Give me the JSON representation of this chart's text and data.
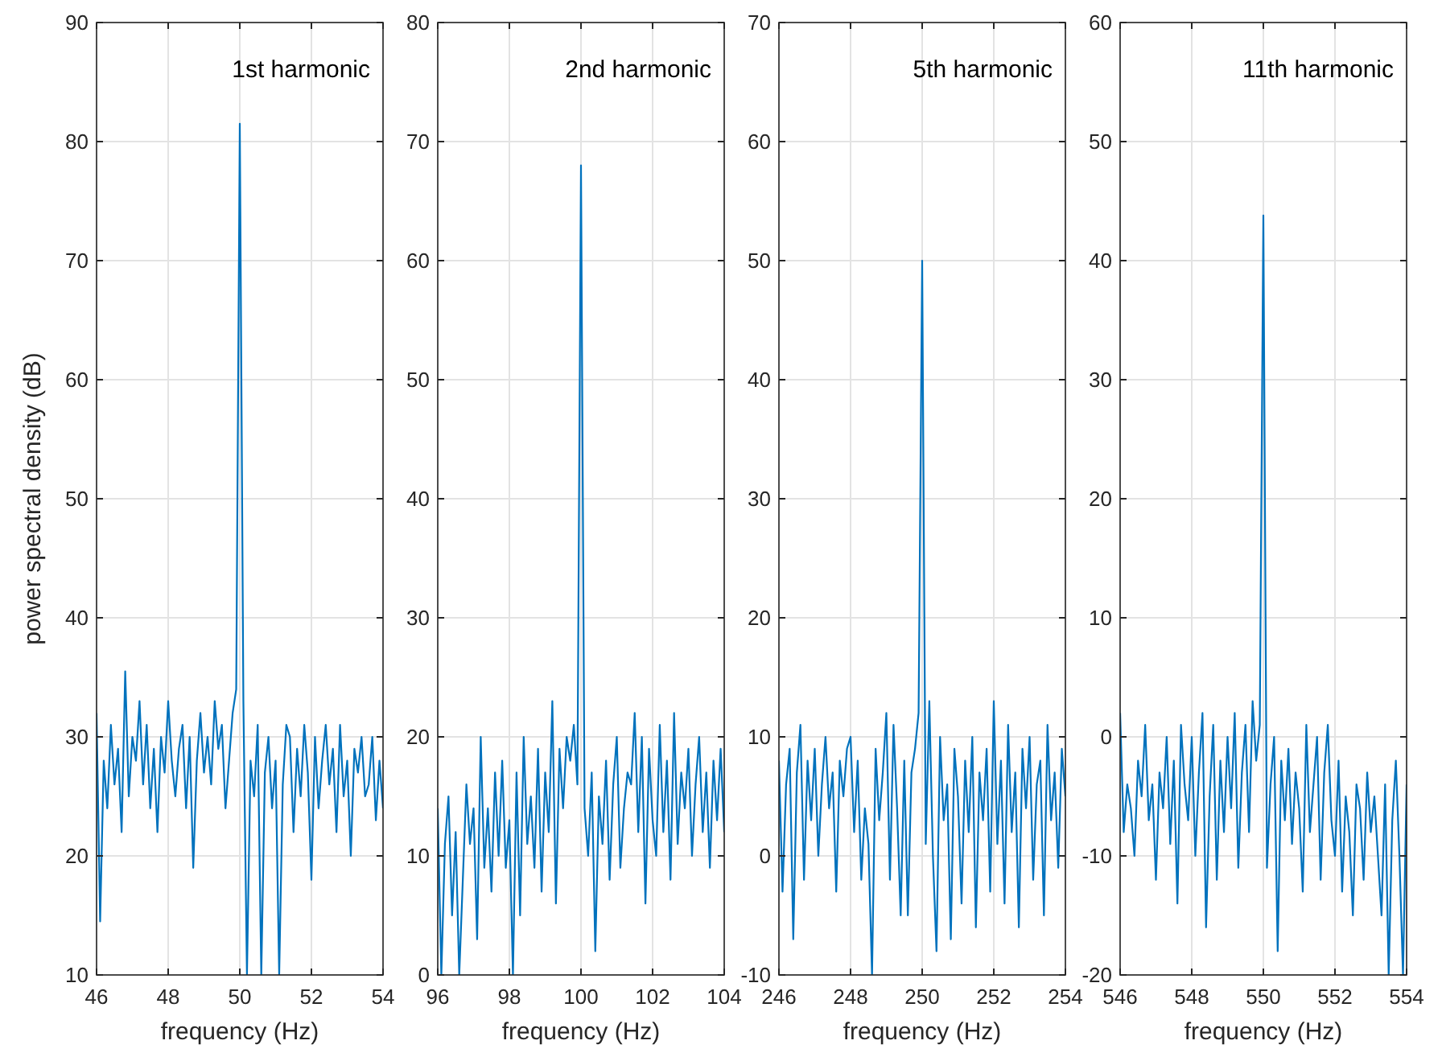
{
  "chart_data": [
    {
      "type": "line",
      "xlabel": "frequency (Hz)",
      "ylabel": "power spectral density (dB)",
      "annotations": [
        "1st harmonic"
      ],
      "xlim": [
        46,
        54
      ],
      "xticks": [
        46,
        48,
        50,
        52,
        54
      ],
      "ylim": [
        10,
        90
      ],
      "yticks": [
        10,
        20,
        30,
        40,
        50,
        60,
        70,
        80,
        90
      ],
      "grid": true,
      "series": [
        {
          "color": "#0072bd",
          "x": [
            46.0,
            46.1,
            46.2,
            46.3,
            46.4,
            46.5,
            46.6,
            46.7,
            46.8,
            46.9,
            47.0,
            47.1,
            47.2,
            47.3,
            47.4,
            47.5,
            47.6,
            47.7,
            47.8,
            47.9,
            48.0,
            48.1,
            48.2,
            48.3,
            48.4,
            48.5,
            48.6,
            48.7,
            48.8,
            48.9,
            49.0,
            49.1,
            49.2,
            49.3,
            49.4,
            49.5,
            49.6,
            49.7,
            49.8,
            49.9,
            50.0,
            50.1,
            50.2,
            50.3,
            50.4,
            50.5,
            50.6,
            50.7,
            50.8,
            50.9,
            51.0,
            51.1,
            51.2,
            51.3,
            51.4,
            51.5,
            51.6,
            51.7,
            51.8,
            51.9,
            52.0,
            52.1,
            52.2,
            52.3,
            52.4,
            52.5,
            52.6,
            52.7,
            52.8,
            52.9,
            53.0,
            53.1,
            53.2,
            53.3,
            53.4,
            53.5,
            53.6,
            53.7,
            53.8,
            53.9,
            54.0
          ],
          "values": [
            32,
            14.5,
            28,
            24,
            31,
            26,
            29,
            22,
            35.5,
            25,
            30,
            28,
            33,
            26,
            31,
            24,
            29,
            22,
            30,
            27,
            33,
            28,
            25,
            29,
            31,
            24,
            30,
            19,
            28,
            32,
            27,
            30,
            26,
            33,
            29,
            31,
            24,
            28,
            32,
            34,
            81.5,
            33,
            10,
            28,
            25,
            31,
            10,
            27,
            30,
            24,
            28,
            10,
            26,
            31,
            30,
            22,
            29,
            25,
            31,
            27,
            18,
            30,
            24,
            28,
            31,
            26,
            29,
            22,
            31,
            25,
            28,
            20,
            29,
            27,
            30,
            25,
            26,
            30,
            23,
            28,
            24
          ]
        }
      ]
    },
    {
      "type": "line",
      "xlabel": "frequency (Hz)",
      "annotations": [
        "2nd harmonic"
      ],
      "xlim": [
        96,
        104
      ],
      "xticks": [
        96,
        98,
        100,
        102,
        104
      ],
      "ylim": [
        0,
        80
      ],
      "yticks": [
        0,
        10,
        20,
        30,
        40,
        50,
        60,
        70,
        80
      ],
      "grid": true,
      "series": [
        {
          "color": "#0072bd",
          "x": [
            96.0,
            96.1,
            96.2,
            96.3,
            96.4,
            96.5,
            96.6,
            96.7,
            96.8,
            96.9,
            97.0,
            97.1,
            97.2,
            97.3,
            97.4,
            97.5,
            97.6,
            97.7,
            97.8,
            97.9,
            98.0,
            98.1,
            98.2,
            98.3,
            98.4,
            98.5,
            98.6,
            98.7,
            98.8,
            98.9,
            99.0,
            99.1,
            99.2,
            99.3,
            99.4,
            99.5,
            99.6,
            99.7,
            99.8,
            99.9,
            100.0,
            100.1,
            100.2,
            100.3,
            100.4,
            100.5,
            100.6,
            100.7,
            100.8,
            100.9,
            101.0,
            101.1,
            101.2,
            101.3,
            101.4,
            101.5,
            101.6,
            101.7,
            101.8,
            101.9,
            102.0,
            102.1,
            102.2,
            102.3,
            102.4,
            102.5,
            102.6,
            102.7,
            102.8,
            102.9,
            103.0,
            103.1,
            103.2,
            103.3,
            103.4,
            103.5,
            103.6,
            103.7,
            103.8,
            103.9,
            104.0
          ],
          "values": [
            14,
            0,
            11,
            15,
            5,
            12,
            0,
            8,
            16,
            11,
            14,
            3,
            20,
            9,
            14,
            7,
            17,
            10,
            18,
            9,
            13,
            0,
            17,
            5,
            20,
            11,
            15,
            9,
            19,
            7,
            17,
            12,
            23,
            6,
            19,
            14,
            20,
            18,
            21,
            16,
            68,
            14,
            10,
            17,
            2,
            15,
            11,
            18,
            8,
            16,
            20,
            9,
            14,
            17,
            16,
            22,
            12,
            20,
            6,
            19,
            13,
            10,
            21,
            12,
            18,
            8,
            22,
            11,
            17,
            14,
            19,
            10,
            16,
            20,
            12,
            17,
            9,
            18,
            13,
            19,
            12
          ]
        }
      ]
    },
    {
      "type": "line",
      "xlabel": "frequency (Hz)",
      "annotations": [
        "5th harmonic"
      ],
      "xlim": [
        246,
        254
      ],
      "xticks": [
        246,
        248,
        250,
        252,
        254
      ],
      "ylim": [
        -10,
        70
      ],
      "yticks": [
        -10,
        0,
        10,
        20,
        30,
        40,
        50,
        60,
        70
      ],
      "grid": true,
      "series": [
        {
          "color": "#0072bd",
          "x": [
            246.0,
            246.1,
            246.2,
            246.3,
            246.4,
            246.5,
            246.6,
            246.7,
            246.8,
            246.9,
            247.0,
            247.1,
            247.2,
            247.3,
            247.4,
            247.5,
            247.6,
            247.7,
            247.8,
            247.9,
            248.0,
            248.1,
            248.2,
            248.3,
            248.4,
            248.5,
            248.6,
            248.7,
            248.8,
            248.9,
            249.0,
            249.1,
            249.2,
            249.3,
            249.4,
            249.5,
            249.6,
            249.7,
            249.8,
            249.9,
            250.0,
            250.1,
            250.2,
            250.3,
            250.4,
            250.5,
            250.6,
            250.7,
            250.8,
            250.9,
            251.0,
            251.1,
            251.2,
            251.3,
            251.4,
            251.5,
            251.6,
            251.7,
            251.8,
            251.9,
            252.0,
            252.1,
            252.2,
            252.3,
            252.4,
            252.5,
            252.6,
            252.7,
            252.8,
            252.9,
            253.0,
            253.1,
            253.2,
            253.3,
            253.4,
            253.5,
            253.6,
            253.7,
            253.8,
            253.9,
            254.0
          ],
          "values": [
            8,
            -3,
            6,
            9,
            -7,
            7,
            11,
            -2,
            8,
            3,
            9,
            0,
            6,
            10,
            4,
            7,
            -3,
            8,
            5,
            9,
            10,
            2,
            8,
            -2,
            4,
            1,
            -10,
            9,
            3,
            7,
            12,
            -2,
            11,
            4,
            -5,
            8,
            -5,
            7,
            9,
            12,
            50,
            1,
            13,
            0,
            -8,
            10,
            3,
            6,
            -7,
            9,
            5,
            -4,
            8,
            2,
            10,
            -6,
            7,
            3,
            9,
            -3,
            13,
            1,
            8,
            -4,
            11,
            2,
            7,
            -6,
            9,
            4,
            10,
            -2,
            6,
            8,
            -5,
            11,
            3,
            7,
            -1,
            9,
            5
          ]
        }
      ]
    },
    {
      "type": "line",
      "xlabel": "frequency (Hz)",
      "annotations": [
        "11th harmonic"
      ],
      "xlim": [
        546,
        554
      ],
      "xticks": [
        546,
        548,
        550,
        552,
        554
      ],
      "ylim": [
        -20,
        60
      ],
      "yticks": [
        -20,
        -10,
        0,
        10,
        20,
        30,
        40,
        50,
        60
      ],
      "grid": true,
      "series": [
        {
          "color": "#0072bd",
          "x": [
            546.0,
            546.1,
            546.2,
            546.3,
            546.4,
            546.5,
            546.6,
            546.7,
            546.8,
            546.9,
            547.0,
            547.1,
            547.2,
            547.3,
            547.4,
            547.5,
            547.6,
            547.7,
            547.8,
            547.9,
            548.0,
            548.1,
            548.2,
            548.3,
            548.4,
            548.5,
            548.6,
            548.7,
            548.8,
            548.9,
            549.0,
            549.1,
            549.2,
            549.3,
            549.4,
            549.5,
            549.6,
            549.7,
            549.8,
            549.9,
            550.0,
            550.1,
            550.2,
            550.3,
            550.4,
            550.5,
            550.6,
            550.7,
            550.8,
            550.9,
            551.0,
            551.1,
            551.2,
            551.3,
            551.4,
            551.5,
            551.6,
            551.7,
            551.8,
            551.9,
            552.0,
            552.1,
            552.2,
            552.3,
            552.4,
            552.5,
            552.6,
            552.7,
            552.8,
            552.9,
            553.0,
            553.1,
            553.2,
            553.3,
            553.4,
            553.5,
            553.6,
            553.7,
            553.8,
            553.9,
            554.0
          ],
          "values": [
            2,
            -8,
            -4,
            -6,
            -10,
            -2,
            -5,
            1,
            -7,
            -4,
            -12,
            -3,
            -6,
            0,
            -9,
            -2,
            -14,
            1,
            -4,
            -7,
            0,
            -10,
            -3,
            2,
            -16,
            -5,
            1,
            -12,
            -2,
            -8,
            0,
            -6,
            2,
            -11,
            -3,
            1,
            -8,
            3,
            -2,
            1,
            43.8,
            -11,
            -4,
            0,
            -18,
            -2,
            -7,
            -1,
            -9,
            -3,
            -6,
            -13,
            1,
            -8,
            -4,
            0,
            -12,
            -3,
            1,
            -7,
            -10,
            -2,
            -13,
            -5,
            -8,
            -15,
            -4,
            -6,
            -12,
            -3,
            -8,
            -5,
            -10,
            -15,
            -4,
            -20,
            -7,
            -2,
            -10,
            -20,
            -4
          ]
        }
      ]
    }
  ]
}
